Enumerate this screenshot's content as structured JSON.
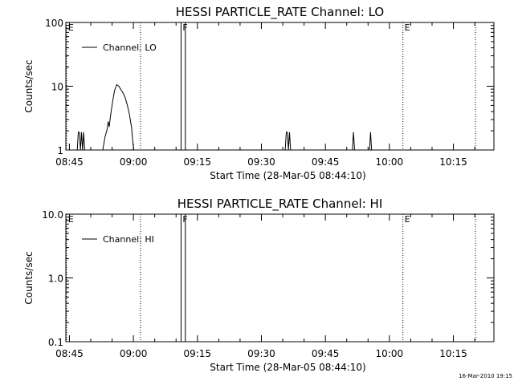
{
  "footer": {
    "timestamp": "16-Mar-2010 19:15"
  },
  "chart_data": [
    {
      "type": "line",
      "title": "HESSI PARTICLE_RATE Channel: LO",
      "xlabel": "Start Time (28-Mar-05 08:44:10)",
      "ylabel": "Counts/sec",
      "yscale": "log",
      "xlim": [
        "08:44:10",
        "10:24:30"
      ],
      "ylim": [
        1,
        100
      ],
      "x_ticks": [
        "08:45",
        "09:00",
        "09:15",
        "09:30",
        "09:45",
        "10:00",
        "10:15"
      ],
      "y_ticks": [
        "1",
        "10",
        "100"
      ],
      "legend": {
        "label": "Channel: LO",
        "placement": "top-left"
      },
      "grid": false,
      "markers": [
        {
          "time": "08:44:20",
          "label": "E",
          "style": "dotted"
        },
        {
          "time": "09:01:40",
          "label": "",
          "style": "dotted"
        },
        {
          "time": "09:11:10",
          "label": "F",
          "style": "solid"
        },
        {
          "time": "09:12:10",
          "label": "",
          "style": "solid"
        },
        {
          "time": "10:03:10",
          "label": "E",
          "style": "dotted"
        },
        {
          "time": "10:20:10",
          "label": "",
          "style": "dotted"
        }
      ],
      "series": [
        {
          "name": "Channel: LO",
          "points": [
            [
              "08:46:50",
              1
            ],
            [
              "08:47:05",
              1.9
            ],
            [
              "08:47:20",
              1.9
            ],
            [
              "08:47:35",
              1
            ],
            [
              "08:47:50",
              1.9
            ],
            [
              "08:48:05",
              1
            ],
            [
              "08:48:20",
              1.9
            ],
            [
              "08:48:35",
              1
            ],
            [
              "08:52:50",
              1
            ],
            [
              "08:53:20",
              1.6
            ],
            [
              "08:53:50",
              2.1
            ],
            [
              "08:54:05",
              2.8
            ],
            [
              "08:54:20",
              2.3
            ],
            [
              "08:54:35",
              3.2
            ],
            [
              "08:55:05",
              5.5
            ],
            [
              "08:55:35",
              8.5
            ],
            [
              "08:56:05",
              10.6
            ],
            [
              "08:56:35",
              10
            ],
            [
              "08:57:05",
              8.8
            ],
            [
              "08:57:35",
              7.8
            ],
            [
              "08:58:05",
              6.6
            ],
            [
              "08:58:35",
              5
            ],
            [
              "08:59:05",
              3.6
            ],
            [
              "08:59:35",
              2.2
            ],
            [
              "08:59:50",
              1.4
            ],
            [
              "09:00:05",
              1
            ],
            [
              "09:35:35",
              1
            ],
            [
              "09:35:50",
              1.9
            ],
            [
              "09:36:05",
              1.9
            ],
            [
              "09:36:20",
              1
            ],
            [
              "09:36:35",
              1.9
            ],
            [
              "09:36:50",
              1
            ],
            [
              "09:51:20",
              1
            ],
            [
              "09:51:35",
              1.9
            ],
            [
              "09:51:50",
              1
            ],
            [
              "09:55:20",
              1
            ],
            [
              "09:55:35",
              1.9
            ],
            [
              "09:55:50",
              1
            ]
          ]
        }
      ]
    },
    {
      "type": "line",
      "title": "HESSI PARTICLE_RATE Channel: HI",
      "xlabel": "Start Time (28-Mar-05 08:44:10)",
      "ylabel": "Counts/sec",
      "yscale": "log",
      "xlim": [
        "08:44:10",
        "10:24:30"
      ],
      "ylim": [
        0.1,
        10
      ],
      "x_ticks": [
        "08:45",
        "09:00",
        "09:15",
        "09:30",
        "09:45",
        "10:00",
        "10:15"
      ],
      "y_ticks": [
        "0.1",
        "1.0",
        "10.0"
      ],
      "legend": {
        "label": "Channel: HI",
        "placement": "top-left"
      },
      "grid": false,
      "markers": [
        {
          "time": "08:44:20",
          "label": "E",
          "style": "dotted"
        },
        {
          "time": "09:01:40",
          "label": "",
          "style": "dotted"
        },
        {
          "time": "09:11:10",
          "label": "F",
          "style": "solid"
        },
        {
          "time": "09:12:10",
          "label": "",
          "style": "solid"
        },
        {
          "time": "10:03:10",
          "label": "E",
          "style": "dotted"
        },
        {
          "time": "10:20:10",
          "label": "",
          "style": "dotted"
        }
      ],
      "series": [
        {
          "name": "Channel: HI",
          "points": []
        }
      ]
    }
  ]
}
